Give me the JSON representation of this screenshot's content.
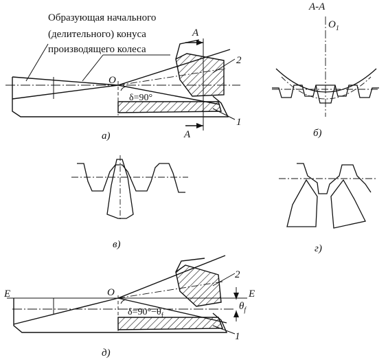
{
  "callout": {
    "line1": "Образующая начального",
    "line2": "(делительного) конуса",
    "line3": "производящего колеса"
  },
  "labels": {
    "section_a": "A",
    "section_aa": "A-A",
    "origin": "O",
    "origin_1": "O",
    "origin_1_sub": "1",
    "edge_e": "E",
    "part_1": "1",
    "part_2": "2",
    "angle_a": "δ=90°",
    "angle_d": "δ=90°−θ",
    "angle_d_sub": "f",
    "theta": "θ",
    "theta_sub": "f"
  },
  "captions": {
    "a": "а)",
    "b": "б)",
    "v": "в)",
    "g": "г)",
    "d": "д)"
  }
}
